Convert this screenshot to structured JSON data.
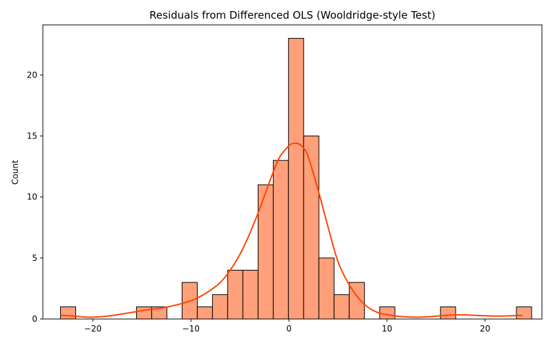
{
  "chart_data": {
    "type": "bar",
    "title": "Residuals from Differenced OLS (Wooldridge-style Test)",
    "xlabel": "",
    "ylabel": "Count",
    "xlim": [
      -25.1,
      25.8
    ],
    "ylim": [
      0,
      24.1
    ],
    "xticks": [
      -20,
      -10,
      0,
      10,
      20
    ],
    "xtick_labels": [
      "−20",
      "−10",
      "0",
      "10",
      "20"
    ],
    "yticks": [
      0,
      5,
      10,
      15,
      20
    ],
    "ytick_labels": [
      "0",
      "5",
      "10",
      "15",
      "20"
    ],
    "grid": false,
    "colors": {
      "bar_fill": "#FFA07A",
      "bar_edge": "#000000",
      "kde_line": "#FF4500"
    },
    "bins": [
      {
        "x0": -23.3,
        "x1": -21.75,
        "count": 1
      },
      {
        "x0": -21.75,
        "x1": -20.2,
        "count": 0
      },
      {
        "x0": -20.2,
        "x1": -18.65,
        "count": 0
      },
      {
        "x0": -18.65,
        "x1": -17.1,
        "count": 0
      },
      {
        "x0": -17.1,
        "x1": -15.55,
        "count": 0
      },
      {
        "x0": -15.55,
        "x1": -14.0,
        "count": 1
      },
      {
        "x0": -14.0,
        "x1": -12.45,
        "count": 1
      },
      {
        "x0": -12.45,
        "x1": -10.9,
        "count": 0
      },
      {
        "x0": -10.9,
        "x1": -9.35,
        "count": 3
      },
      {
        "x0": -9.35,
        "x1": -7.8,
        "count": 1
      },
      {
        "x0": -7.8,
        "x1": -6.25,
        "count": 2
      },
      {
        "x0": -6.25,
        "x1": -4.7,
        "count": 4
      },
      {
        "x0": -4.7,
        "x1": -3.15,
        "count": 4
      },
      {
        "x0": -3.15,
        "x1": -1.6,
        "count": 11
      },
      {
        "x0": -1.6,
        "x1": -0.05,
        "count": 13
      },
      {
        "x0": -0.05,
        "x1": 1.5,
        "count": 23
      },
      {
        "x0": 1.5,
        "x1": 3.05,
        "count": 15
      },
      {
        "x0": 3.05,
        "x1": 4.6,
        "count": 5
      },
      {
        "x0": 4.6,
        "x1": 6.15,
        "count": 2
      },
      {
        "x0": 6.15,
        "x1": 7.7,
        "count": 3
      },
      {
        "x0": 7.7,
        "x1": 9.25,
        "count": 0
      },
      {
        "x0": 9.25,
        "x1": 10.8,
        "count": 1
      },
      {
        "x0": 10.8,
        "x1": 12.35,
        "count": 0
      },
      {
        "x0": 12.35,
        "x1": 13.9,
        "count": 0
      },
      {
        "x0": 13.9,
        "x1": 15.45,
        "count": 0
      },
      {
        "x0": 15.45,
        "x1": 17.0,
        "count": 1
      },
      {
        "x0": 17.0,
        "x1": 18.55,
        "count": 0
      },
      {
        "x0": 18.55,
        "x1": 20.1,
        "count": 0
      },
      {
        "x0": 20.1,
        "x1": 21.65,
        "count": 0
      },
      {
        "x0": 21.65,
        "x1": 23.2,
        "count": 0
      },
      {
        "x0": 23.2,
        "x1": 24.75,
        "count": 1
      }
    ],
    "kde": {
      "x": [
        -23.3,
        -22.0,
        -20.5,
        -19.0,
        -17.5,
        -16.0,
        -14.5,
        -13.0,
        -11.5,
        -10.0,
        -8.5,
        -7.0,
        -6.0,
        -5.0,
        -4.0,
        -3.0,
        -2.0,
        -1.0,
        0.0,
        0.5,
        1.0,
        1.5,
        2.0,
        3.0,
        4.0,
        5.0,
        6.0,
        7.0,
        8.0,
        9.0,
        10.0,
        11.5,
        13.0,
        14.5,
        16.0,
        17.5,
        19.0,
        20.5,
        22.0,
        23.8
      ],
      "y": [
        0.3,
        0.25,
        0.15,
        0.2,
        0.35,
        0.55,
        0.75,
        0.9,
        1.15,
        1.5,
        2.1,
        3.0,
        4.0,
        5.3,
        7.0,
        9.0,
        11.2,
        13.2,
        14.2,
        14.4,
        14.35,
        14.0,
        13.2,
        10.5,
        7.5,
        4.7,
        3.0,
        1.8,
        1.0,
        0.55,
        0.35,
        0.2,
        0.15,
        0.2,
        0.3,
        0.35,
        0.3,
        0.25,
        0.25,
        0.3
      ]
    }
  }
}
